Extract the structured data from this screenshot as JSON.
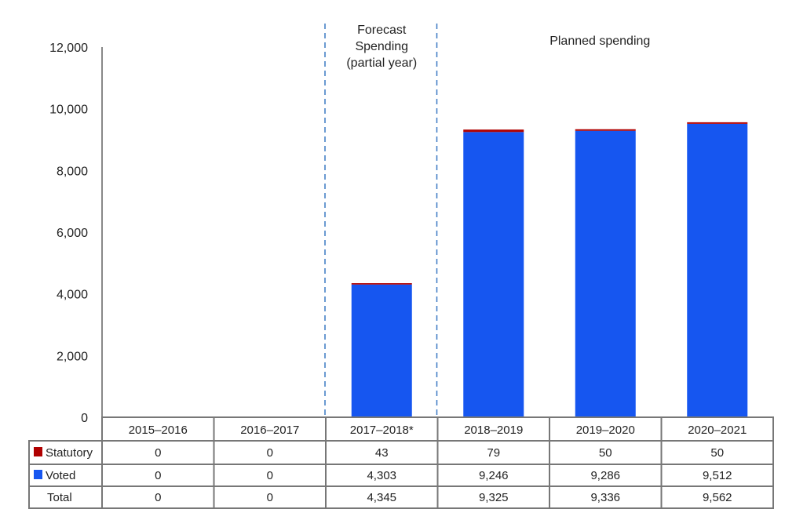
{
  "chart_data": {
    "type": "bar",
    "stacked": true,
    "categories": [
      "2015–2016",
      "2016–2017",
      "2017–2018*",
      "2018–2019",
      "2019–2020",
      "2020–2021"
    ],
    "series": [
      {
        "name": "Statutory",
        "color": "#b00000",
        "values": [
          0,
          0,
          43,
          79,
          50,
          50
        ]
      },
      {
        "name": "Voted",
        "color": "#1656f0",
        "values": [
          0,
          0,
          4303,
          9246,
          9286,
          9512
        ]
      }
    ],
    "totals": {
      "name": "Total",
      "values": [
        "0",
        "0",
        "4,345",
        "9,325",
        "9,336",
        "9,562"
      ]
    },
    "display": {
      "Statutory": [
        "0",
        "0",
        "43",
        "79",
        "50",
        "50"
      ],
      "Voted": [
        "0",
        "0",
        "4,303",
        "9,246",
        "9,286",
        "9,512"
      ]
    },
    "ylim": [
      0,
      12000
    ],
    "yticks": [
      0,
      2000,
      4000,
      6000,
      8000,
      10000,
      12000
    ],
    "ytick_labels": [
      "0",
      "2,000",
      "4,000",
      "6,000",
      "8,000",
      "10,000",
      "12,000"
    ],
    "annotations": {
      "forecast": [
        "Forecast",
        "Spending",
        "(partial year)"
      ],
      "planned": "Planned spending"
    },
    "legend": "data-table-below"
  }
}
